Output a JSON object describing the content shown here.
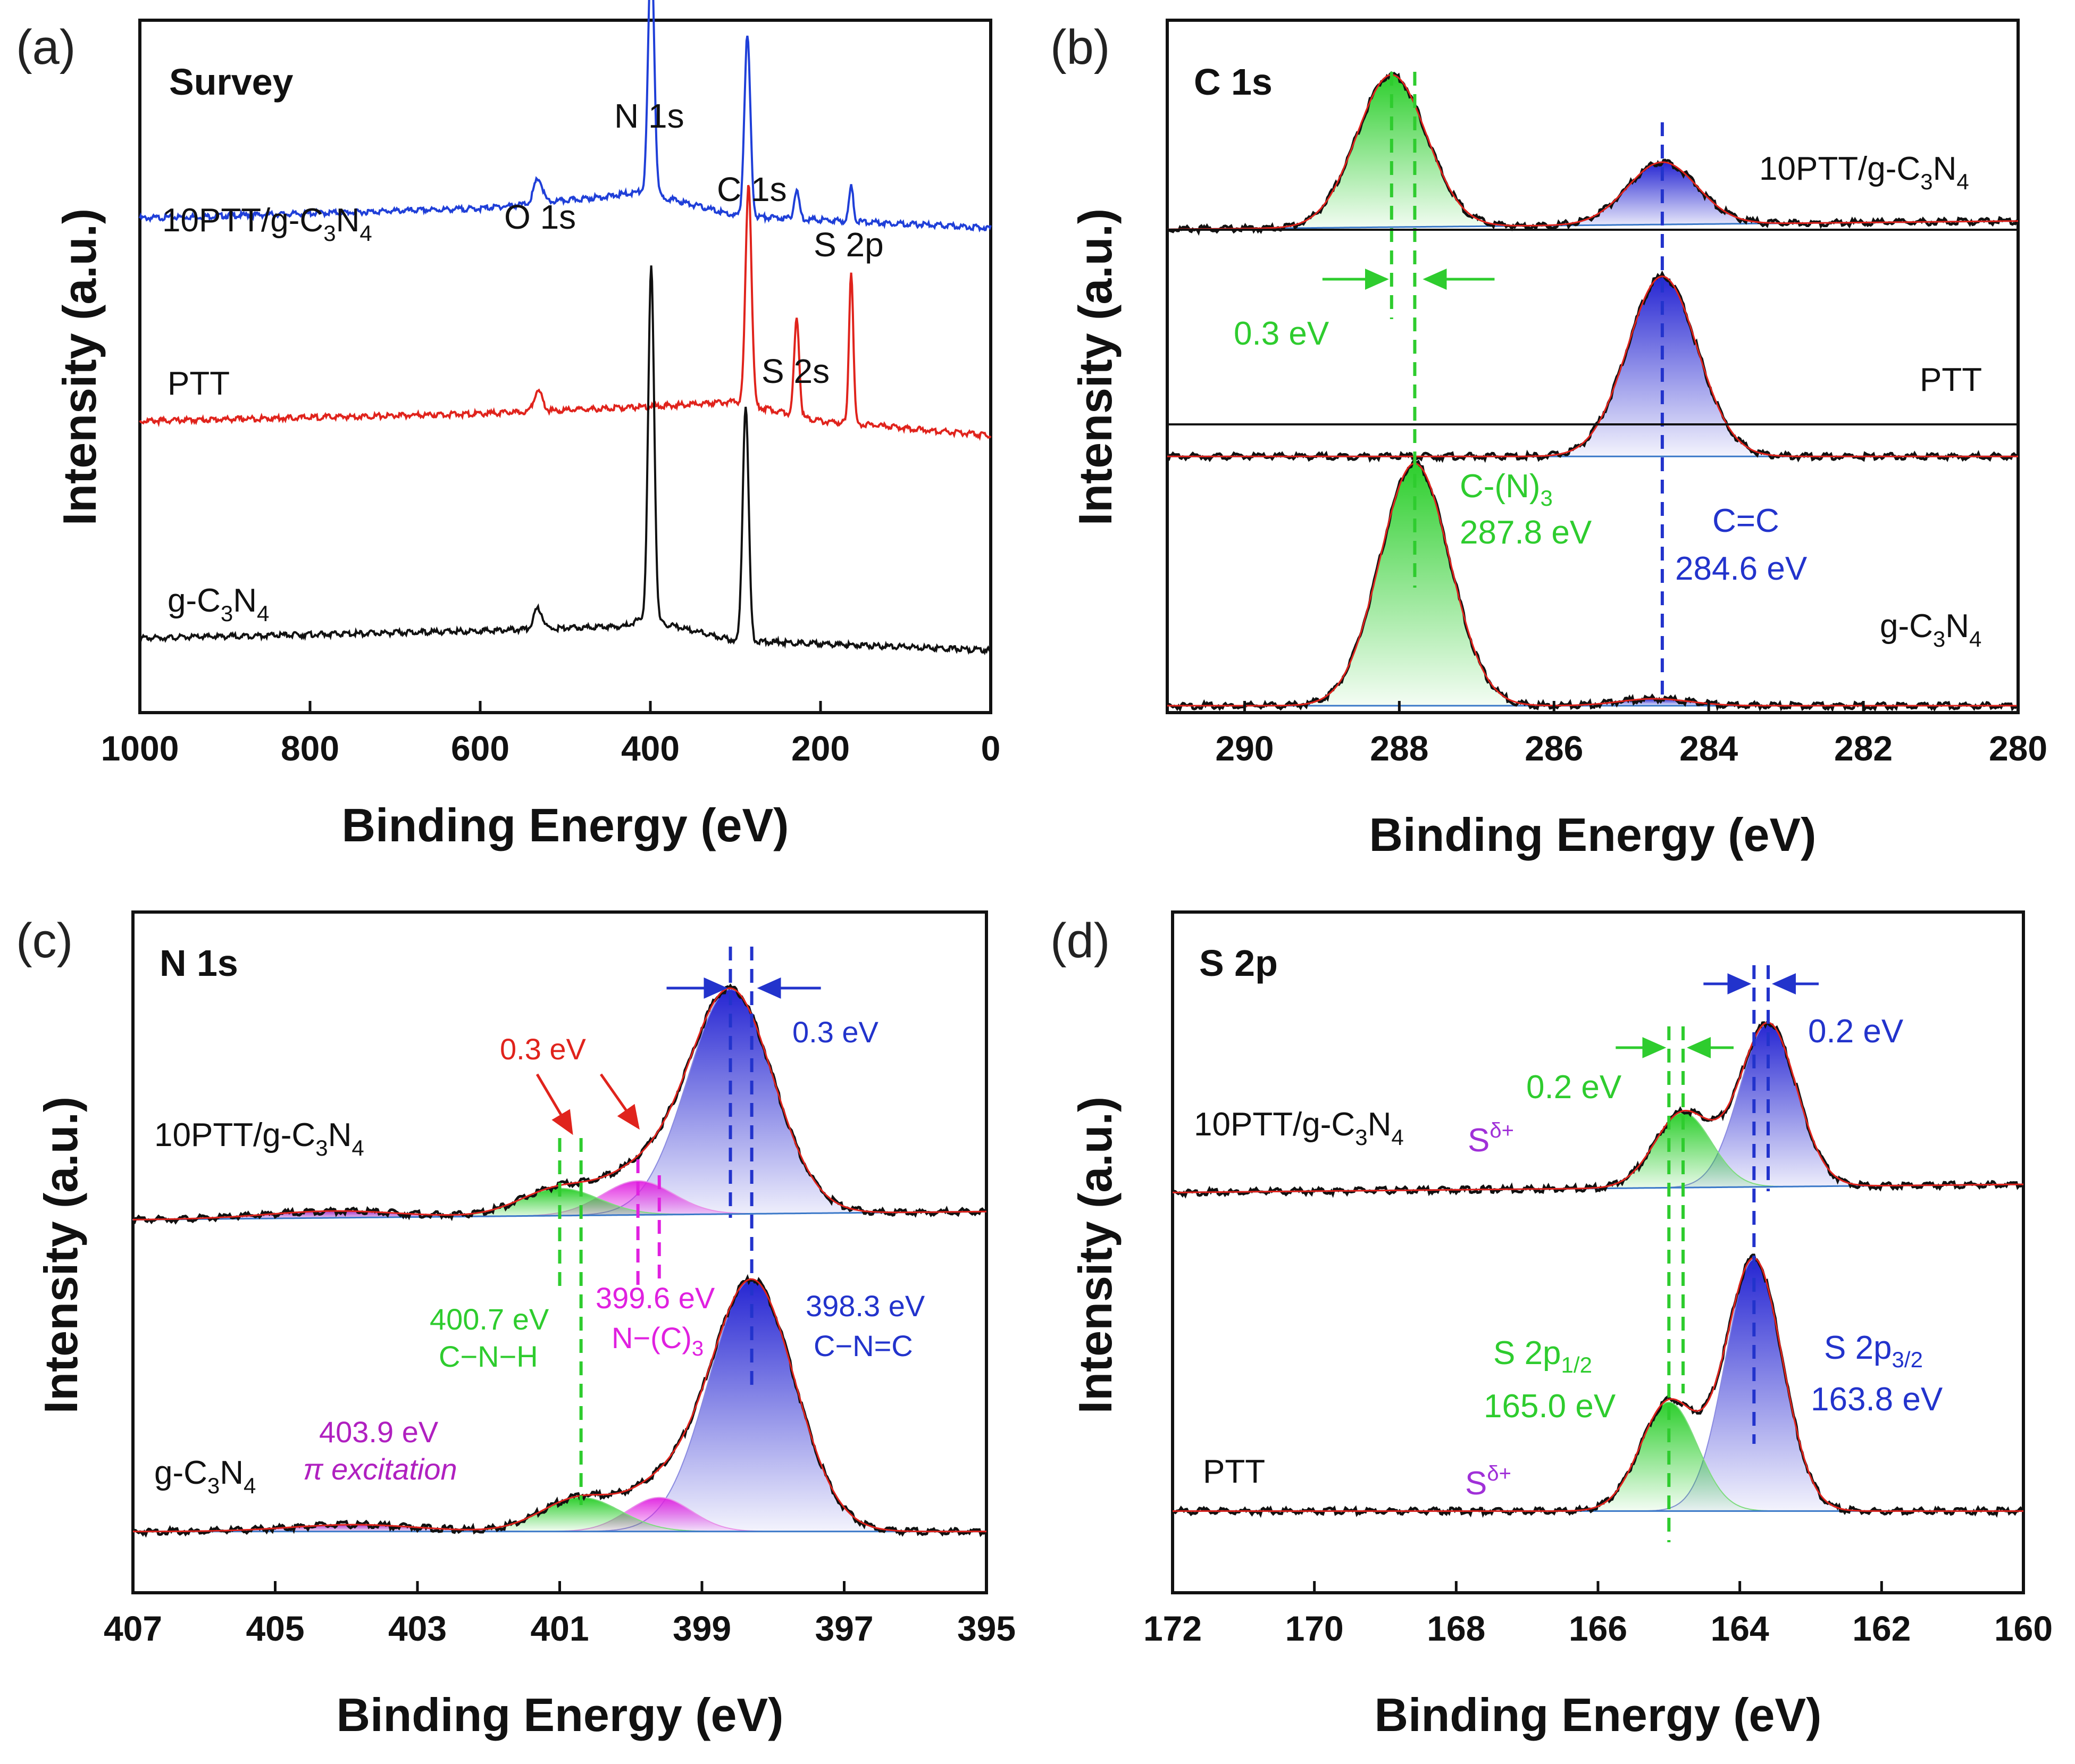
{
  "chart_data": [
    {
      "panel": "(a)",
      "type": "line",
      "title": "Survey",
      "xlabel": "Binding Energy (eV)",
      "ylabel": "Intensity (a.u.)",
      "xlim": [
        1000,
        0
      ],
      "xticks": [
        "1000",
        "800",
        "600",
        "400",
        "200",
        "0"
      ],
      "tickValues": [
        1000,
        800,
        600,
        400,
        200,
        0
      ],
      "series": [
        {
          "name": "10PTT/g-C3N4",
          "color": "#1f3fd8",
          "baseline": 0.7,
          "bg": [
            [
              1000,
              0.04
            ],
            [
              600,
              0.08
            ],
            [
              450,
              0.13
            ],
            [
              410,
              0.15
            ],
            [
              300,
              0.05
            ],
            [
              0,
              0.0
            ]
          ],
          "peaks": [
            [
              532,
              0.035,
              5
            ],
            [
              399,
              0.36,
              3.5
            ],
            [
              286,
              0.26,
              3.5
            ],
            [
              228,
              0.04,
              3
            ],
            [
              164,
              0.05,
              2.5
            ]
          ]
        },
        {
          "name": "PTT",
          "color": "#e0231c",
          "baseline": 0.4,
          "bg": [
            [
              1000,
              0.06
            ],
            [
              600,
              0.09
            ],
            [
              400,
              0.12
            ],
            [
              300,
              0.14
            ],
            [
              200,
              0.06
            ],
            [
              160,
              0.05
            ],
            [
              0,
              0.0
            ]
          ],
          "peaks": [
            [
              532,
              0.03,
              5
            ],
            [
              284.6,
              0.32,
              3.5
            ],
            [
              228,
              0.14,
              3
            ],
            [
              164,
              0.22,
              2.5
            ]
          ]
        },
        {
          "name": "g-C3N4",
          "color": "#111111",
          "baseline": 0.09,
          "bg": [
            [
              1000,
              0.05
            ],
            [
              600,
              0.08
            ],
            [
              430,
              0.1
            ],
            [
              410,
              0.13
            ],
            [
              300,
              0.04
            ],
            [
              0,
              0.0
            ]
          ],
          "peaks": [
            [
              532,
              0.03,
              5
            ],
            [
              399,
              0.51,
              3.5
            ],
            [
              288,
              0.34,
              3.5
            ]
          ]
        }
      ],
      "sample_labels": [
        {
          "key": "s1",
          "base": "10PTT/g-C",
          "sub1": "3",
          "mid": "N",
          "sub2": "4"
        },
        {
          "key": "s2",
          "base": "PTT"
        },
        {
          "key": "s3",
          "base": "g-C",
          "sub1": "3",
          "mid": "N",
          "sub2": "4"
        }
      ],
      "peak_labels": [
        "O 1s",
        "N 1s",
        "C 1s",
        "S 2p",
        "S 2s"
      ]
    },
    {
      "panel": "(b)",
      "type": "line",
      "title": "C 1s",
      "xlabel": "Binding Energy (eV)",
      "ylabel": "Intensity (a.u.)",
      "xlim": [
        291,
        280
      ],
      "xticks": [
        "290",
        "288",
        "286",
        "284",
        "282",
        "280"
      ],
      "tickValues": [
        290,
        288,
        286,
        284,
        282,
        280
      ],
      "components": [
        {
          "name": "C-(N)3",
          "energy": 287.8,
          "color": "#2ecc2e"
        },
        {
          "name": "C=C",
          "energy": 284.6,
          "color": "#2233cc"
        }
      ],
      "series": [
        {
          "name": "10PTT/g-C3N4",
          "offset": 0.71,
          "peaks": [
            [
              288.1,
              0.22,
              0.45,
              "green"
            ],
            [
              284.6,
              0.09,
              0.45,
              "blue"
            ]
          ]
        },
        {
          "name": "PTT",
          "offset": 0.37,
          "peaks": [
            [
              284.6,
              0.26,
              0.45,
              "blue"
            ]
          ]
        },
        {
          "name": "g-C3N4",
          "offset": 0.01,
          "peaks": [
            [
              287.8,
              0.35,
              0.45,
              "green"
            ],
            [
              284.7,
              0.01,
              0.45,
              "blue"
            ]
          ]
        }
      ],
      "sample_labels": {
        "s1_base": "10PTT/g-C",
        "s1_sub1": "3",
        "s1_mid": "N",
        "s1_sub2": "4",
        "s2": "PTT",
        "s3_base": "g-C",
        "s3_sub1": "3",
        "s3_mid": "N",
        "s3_sub2": "4"
      },
      "annotations": {
        "shift": "0.3 eV",
        "green_name": "C-(N)",
        "green_sub": "3",
        "green_energy": "287.8 eV",
        "blue_name": "C=C",
        "blue_energy": "284.6 eV"
      }
    },
    {
      "panel": "(c)",
      "type": "line",
      "title": "N 1s",
      "xlabel": "Binding Energy (eV)",
      "ylabel": "Intensity (a.u.)",
      "xlim": [
        407,
        395
      ],
      "xticks": [
        "407",
        "405",
        "403",
        "401",
        "399",
        "397",
        "395"
      ],
      "tickValues": [
        407,
        405,
        403,
        401,
        399,
        397,
        395
      ],
      "components": [
        {
          "name": "C-N=C",
          "energy": 398.3,
          "color": "#2233cc"
        },
        {
          "name": "N-(C)3",
          "energy": 399.6,
          "color": "#e020e0"
        },
        {
          "name": "C-N-H",
          "energy": 400.7,
          "color": "#2ecc2e"
        },
        {
          "name": "π excitation",
          "energy": 403.9,
          "color": "#b020c0"
        }
      ],
      "series": [
        {
          "name": "10PTT/g-C3N4",
          "offset": 0.56,
          "peaks": [
            [
              398.6,
              0.33,
              0.6,
              "blue"
            ],
            [
              399.9,
              0.05,
              0.5,
              "magenta"
            ],
            [
              401.0,
              0.04,
              0.55,
              "green"
            ],
            [
              404.2,
              0.01,
              0.9,
              "purple"
            ]
          ]
        },
        {
          "name": "g-C3N4",
          "offset": 0.09,
          "peaks": [
            [
              398.3,
              0.37,
              0.6,
              "blue"
            ],
            [
              399.6,
              0.05,
              0.45,
              "magenta"
            ],
            [
              400.7,
              0.05,
              0.55,
              "green"
            ],
            [
              403.9,
              0.01,
              0.9,
              "purple"
            ]
          ]
        }
      ],
      "sample_labels": {
        "s1_base": "10PTT/g-C",
        "s1_sub1": "3",
        "s1_mid": "N",
        "s1_sub2": "4",
        "s2_base": "g-C",
        "s2_sub1": "3",
        "s2_mid": "N",
        "s2_sub2": "4"
      },
      "annotations": {
        "shift_red": "0.3 eV",
        "shift_blue": "0.3 eV",
        "green_energy": "400.7 eV",
        "green_name": "C−N−H",
        "magenta_energy": "399.6 eV",
        "magenta_name": "N−(C)",
        "magenta_sub": "3",
        "blue_energy": "398.3 eV",
        "blue_name": "C−N=C",
        "purple_energy": "403.9 eV",
        "purple_name": "π excitation"
      }
    },
    {
      "panel": "(d)",
      "type": "line",
      "title": "S 2p",
      "xlabel": "Binding Energy (eV)",
      "ylabel": "Intensity (a.u.)",
      "xlim": [
        172,
        160
      ],
      "xticks": [
        "172",
        "170",
        "168",
        "166",
        "164",
        "162",
        "160"
      ],
      "tickValues": [
        172,
        170,
        168,
        166,
        164,
        162,
        160
      ],
      "components": [
        {
          "name": "S 2p1/2",
          "energy": 165.0,
          "color": "#2ecc2e"
        },
        {
          "name": "S 2p3/2",
          "energy": 163.8,
          "color": "#2233cc"
        }
      ],
      "series": [
        {
          "name": "10PTT/g-C3N4",
          "offset": 0.6,
          "peaks": [
            [
              163.6,
              0.24,
              0.4,
              "blue"
            ],
            [
              164.8,
              0.11,
              0.4,
              "green"
            ]
          ]
        },
        {
          "name": "PTT",
          "offset": 0.12,
          "peaks": [
            [
              163.8,
              0.37,
              0.4,
              "blue"
            ],
            [
              165.0,
              0.16,
              0.4,
              "green"
            ]
          ]
        }
      ],
      "sample_labels": {
        "s1_base": "10PTT/g-C",
        "s1_sub1": "3",
        "s1_mid": "N",
        "s1_sub2": "4",
        "s2": "PTT"
      },
      "annotations": {
        "shift_blue": "0.2 eV",
        "shift_green": "0.2 eV",
        "sdelta_base": "S",
        "sdelta_sup": "δ+",
        "green_name": "S 2p",
        "green_sub": "1/2",
        "green_energy": "165.0 eV",
        "blue_name": "S 2p",
        "blue_sub": "3/2",
        "blue_energy": "163.8 eV"
      }
    }
  ]
}
